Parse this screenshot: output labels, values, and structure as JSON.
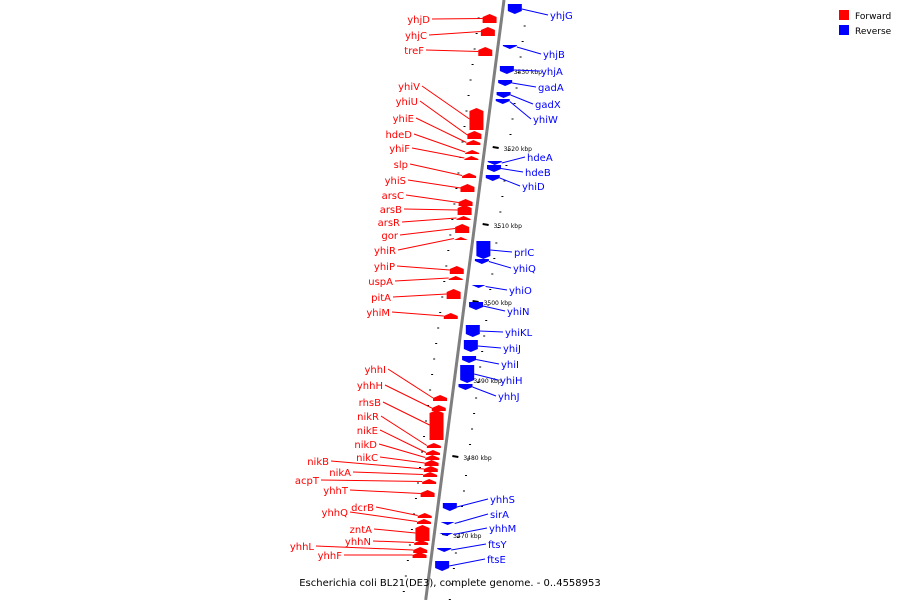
{
  "colors": {
    "forward": "#ff0000",
    "reverse": "#0000ff",
    "backbone": "#7f7f7f",
    "tick": "#000000"
  },
  "legend": [
    {
      "label": "Forward",
      "color": "#ff0000"
    },
    {
      "label": "Reverse",
      "color": "#0000ff"
    }
  ],
  "caption": "Escherichia coli BL21(DE3), complete genome. - 0..4558953",
  "ticks": [
    "3530 kbp",
    "3520 kbp",
    "3510 kbp",
    "3500 kbp",
    "3490 kbp",
    "3480 kbp",
    "3470 kbp"
  ],
  "forward_genes": [
    "yhjD",
    "yhjC",
    "treF",
    "yhiV",
    "yhiU",
    "yhiE",
    "hdeD",
    "yhiF",
    "slp",
    "yhiS",
    "arsC",
    "arsB",
    "arsR",
    "gor",
    "yhiR",
    "yhiP",
    "uspA",
    "pitA",
    "yhiM",
    "yhhI",
    "yhhH",
    "rhsB",
    "nikR",
    "nikE",
    "nikD",
    "nikC",
    "nikB",
    "nikA",
    "acpT",
    "yhhT",
    "dcrB",
    "yhhQ",
    "zntA",
    "yhhN",
    "yhhL",
    "yhhF"
  ],
  "reverse_genes": [
    "yhjG",
    "yhjB",
    "yhjA",
    "gadA",
    "gadX",
    "yhiW",
    "hdeA",
    "hdeB",
    "yhiD",
    "prlC",
    "yhiQ",
    "yhiO",
    "yhiN",
    "yhiKL",
    "yhiJ",
    "yhiI",
    "yhiH",
    "yhhJ",
    "yhhS",
    "sirA",
    "yhhM",
    "ftsY",
    "ftsE"
  ]
}
